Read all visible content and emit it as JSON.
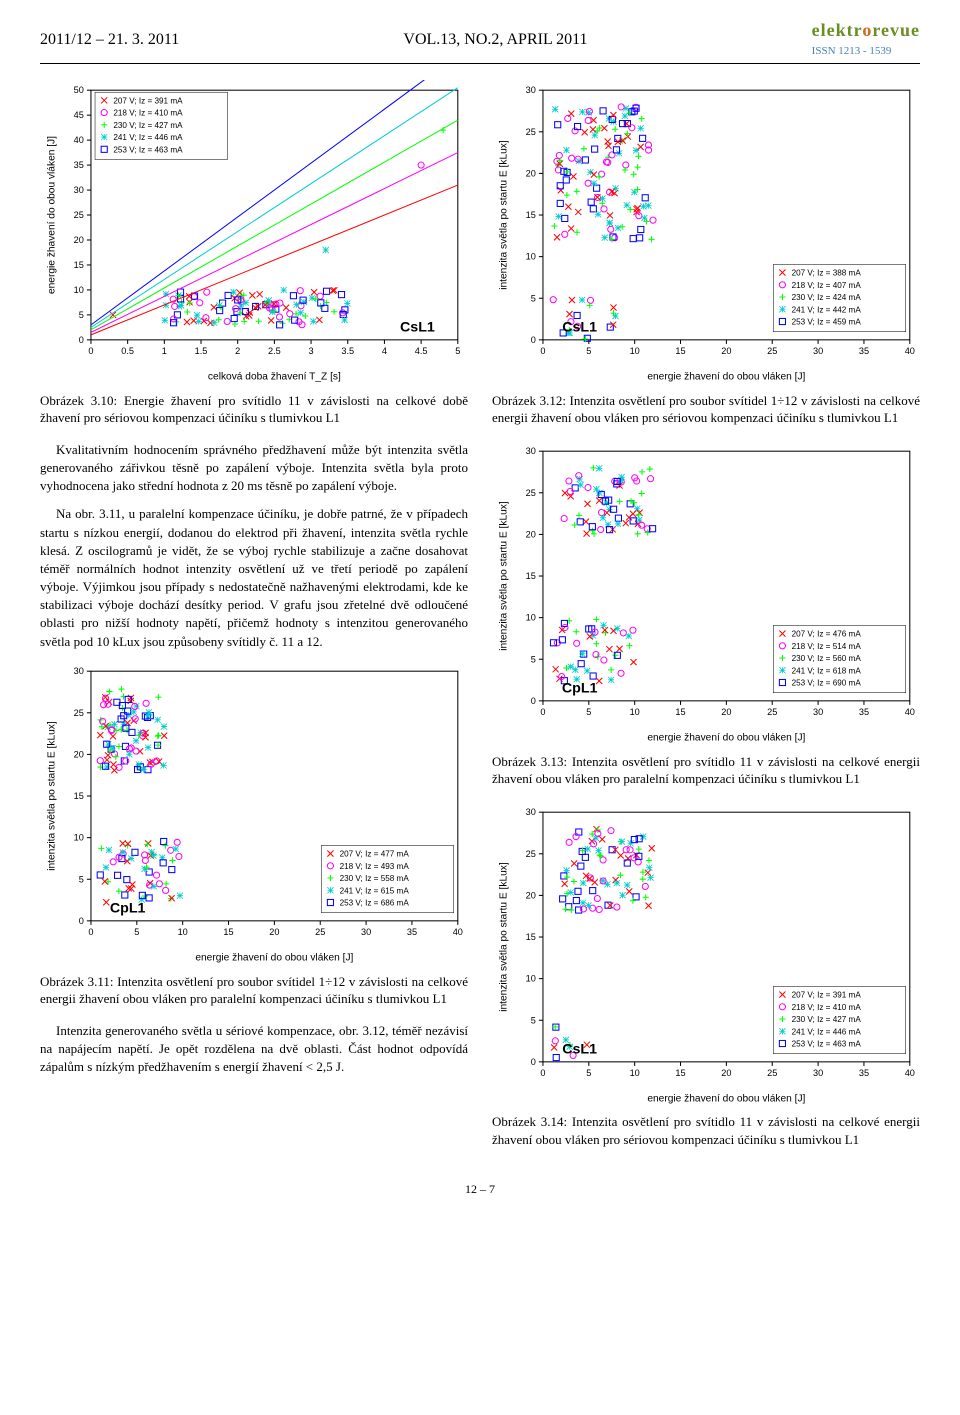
{
  "header": {
    "left": "2011/12 – 21. 3. 2011",
    "center": "VOL.13, NO.2, APRIL 2011",
    "logo_text": "elektrorevue",
    "issn": "ISSN 1213 - 1539"
  },
  "colors": {
    "s207": "#ff0000",
    "s218": "#ff00ff",
    "s230": "#00ff00",
    "s241": "#00cccc",
    "s253": "#0000ff",
    "axis": "#000000",
    "grid": "#e0e0e0",
    "text": "#000000"
  },
  "chart_a": {
    "type": "scatter-line",
    "tag": "CsL1",
    "xlabel": "celková doba žhavení T_Z [s]",
    "ylabel": "energie žhavení do obou vláken [J]",
    "xlim": [
      0,
      5
    ],
    "xtick": 0.5,
    "ylim": [
      0,
      50
    ],
    "ytick": 5,
    "legend_pos": "top-left",
    "legend": [
      {
        "mark": "x",
        "color": "#ff0000",
        "label": "207 V; Iz = 391 mA"
      },
      {
        "mark": "o",
        "color": "#ff00ff",
        "label": "218 V; Iz = 410 mA"
      },
      {
        "mark": "+",
        "color": "#00ff00",
        "label": "230 V; Iz = 427 mA"
      },
      {
        "mark": "*",
        "color": "#00cccc",
        "label": "241 V; Iz = 446 mA"
      },
      {
        "mark": "sq",
        "color": "#0000ff",
        "label": "253 V; Iz = 463 mA"
      }
    ],
    "cluster": {
      "x": [
        1.0,
        3.5
      ],
      "y": [
        3,
        10
      ],
      "n": 120
    },
    "outliers": [
      [
        0.3,
        5
      ],
      [
        4.5,
        35
      ],
      [
        4.8,
        42
      ],
      [
        3.2,
        18
      ],
      [
        2.0,
        8
      ]
    ]
  },
  "chart_b": {
    "type": "scatter",
    "tag": "CpL1",
    "xlabel": "energie žhavení do obou vláken [J]",
    "ylabel": "intenzita světla po startu E [kLux]",
    "xlim": [
      0,
      40
    ],
    "xtick": 5,
    "ylim": [
      0,
      30
    ],
    "ytick": 5,
    "legend_pos": "bottom-right",
    "legend": [
      {
        "mark": "x",
        "color": "#ff0000",
        "label": "207 V; Iz = 477 mA"
      },
      {
        "mark": "o",
        "color": "#ff00ff",
        "label": "218 V; Iz = 493 mA"
      },
      {
        "mark": "+",
        "color": "#00ff00",
        "label": "230 V; Iz = 558 mA"
      },
      {
        "mark": "*",
        "color": "#00cccc",
        "label": "241 V; Iz = 615 mA"
      },
      {
        "mark": "sq",
        "color": "#0000ff",
        "label": "253 V; Iz = 686 mA"
      }
    ],
    "cluster1": {
      "x": [
        1,
        8
      ],
      "y": [
        18,
        28
      ],
      "n": 100
    },
    "cluster2": {
      "x": [
        1,
        10
      ],
      "y": [
        2,
        10
      ],
      "n": 60
    }
  },
  "chart_c": {
    "type": "scatter",
    "tag": "CsL1",
    "xlabel": "energie žhavení do obou vláken [J]",
    "ylabel": "intenzita světla po startu E [kLux]",
    "xlim": [
      0,
      40
    ],
    "xtick": 5,
    "ylim": [
      0,
      30
    ],
    "ytick": 5,
    "legend_pos": "bottom-right",
    "legend": [
      {
        "mark": "x",
        "color": "#ff0000",
        "label": "207 V; Iz = 388 mA"
      },
      {
        "mark": "o",
        "color": "#ff00ff",
        "label": "218 V; Iz = 407 mA"
      },
      {
        "mark": "+",
        "color": "#00ff00",
        "label": "230 V; Iz = 424 mA"
      },
      {
        "mark": "*",
        "color": "#00cccc",
        "label": "241 V; Iz = 442 mA"
      },
      {
        "mark": "sq",
        "color": "#0000ff",
        "label": "253 V; Iz = 459 mA"
      }
    ],
    "cluster1": {
      "x": [
        1,
        12
      ],
      "y": [
        12,
        28
      ],
      "n": 140
    },
    "cluster2": {
      "x": [
        1,
        8
      ],
      "y": [
        0,
        5
      ],
      "n": 20
    }
  },
  "chart_d": {
    "type": "scatter",
    "tag": "CpL1",
    "xlabel": "energie žhavení do obou vláken [J]",
    "ylabel": "intenzita světla po startu E [kLux]",
    "xlim": [
      0,
      40
    ],
    "xtick": 5,
    "ylim": [
      0,
      30
    ],
    "ytick": 5,
    "legend_pos": "bottom-right",
    "legend": [
      {
        "mark": "x",
        "color": "#ff0000",
        "label": "207 V; Iz = 476 mA"
      },
      {
        "mark": "o",
        "color": "#ff00ff",
        "label": "218 V; Iz = 514 mA"
      },
      {
        "mark": "+",
        "color": "#00ff00",
        "label": "230 V; Iz = 560 mA"
      },
      {
        "mark": "*",
        "color": "#00cccc",
        "label": "241 V; Iz = 618 mA"
      },
      {
        "mark": "sq",
        "color": "#0000ff",
        "label": "253 V; Iz = 690 mA"
      }
    ],
    "cluster1": {
      "x": [
        2,
        12
      ],
      "y": [
        20,
        28
      ],
      "n": 70
    },
    "cluster2": {
      "x": [
        1,
        10
      ],
      "y": [
        2,
        10
      ],
      "n": 50
    }
  },
  "chart_e": {
    "type": "scatter",
    "tag": "CsL1",
    "xlabel": "energie žhavení do obou vláken [J]",
    "ylabel": "intenzita světla po startu E [kLux]",
    "xlim": [
      0,
      40
    ],
    "xtick": 5,
    "ylim": [
      0,
      30
    ],
    "ytick": 5,
    "legend_pos": "bottom-right",
    "legend": [
      {
        "mark": "x",
        "color": "#ff0000",
        "label": "207 V; Iz = 391 mA"
      },
      {
        "mark": "o",
        "color": "#ff00ff",
        "label": "218 V; Iz = 410 mA"
      },
      {
        "mark": "+",
        "color": "#00ff00",
        "label": "230 V; Iz = 427 mA"
      },
      {
        "mark": "*",
        "color": "#00cccc",
        "label": "241 V; Iz = 446 mA"
      },
      {
        "mark": "sq",
        "color": "#0000ff",
        "label": "253 V; Iz = 463 mA"
      }
    ],
    "cluster1": {
      "x": [
        2,
        12
      ],
      "y": [
        18,
        28
      ],
      "n": 90
    },
    "cluster2": {
      "x": [
        1,
        5
      ],
      "y": [
        0,
        5
      ],
      "n": 10
    }
  },
  "captions": {
    "c310": "Obrázek 3.10: Energie žhavení pro svítidlo 11 v závislosti na celkové době žhavení pro sériovou kompenzaci účiníku s tlumivkou L1",
    "c311": "Obrázek 3.11: Intenzita osvětlení pro soubor svítidel 1÷12 v závislosti na celkové energii žhavení obou vláken pro paralelní kompenzaci účiníku s tlumivkou L1",
    "c312": "Obrázek 3.12: Intenzita osvětlení pro soubor svítidel 1÷12 v závislosti na celkové energii žhavení obou vláken pro sériovou kompenzaci účiníku s tlumivkou L1",
    "c313": "Obrázek 3.13: Intenzita osvětlení pro svítidlo 11 v závislosti na celkové energii žhavení obou vláken pro paralelní kompen­zaci účiníku s tlumivkou L1",
    "c314": "Obrázek 3.14: Intenzita osvětlení pro svítidlo 11 v závislosti na celkové energii žhavení obou vláken pro sériovou kompen­zaci účiníku s tlumivkou L1"
  },
  "body": {
    "p1": "Kvalitativním hodnocením správného předžhavení může být intenzita světla generovaného zářivkou těsně po zapálení výboje. Intenzita světla byla proto vyhodnocena jako střední hodnota z 20 ms těsně po zapálení výboje.",
    "p2": "Na obr. 3.11, u paralelní kompenzace účiníku, je dobře pa­trné, že v případech startu s nízkou energií, dodanou do elek­trod při žhavení, intenzita světla rychle klesá. Z oscilogramů je vidět, že se výboj rychle stabilizuje a začne dosahovat téměř normálních hodnot intenzity osvětlení už ve třetí periodě po zapálení výboje. Výjimkou jsou případy s nedostatečně nažha­venými elektrodami, kde ke stabilizaci výboje dochází desítky period. V grafu jsou zřetelné dvě odloučené oblasti pro nižší hodnoty napětí, přičemž hodnoty s intenzitou generovaného světla pod 10 kLux jsou způsobeny svítidly č. 11 a 12.",
    "p3": "Intenzita generovaného světla u sériové kompenzace, obr. 3.12, téměř nezávisí na napájecím napětí. Je opět rozděle­na na dvě oblasti. Část hodnot odpovídá zápalům s nízkým předžhavením s energií žhavení < 2,5 J."
  },
  "footer": "12 – 7"
}
